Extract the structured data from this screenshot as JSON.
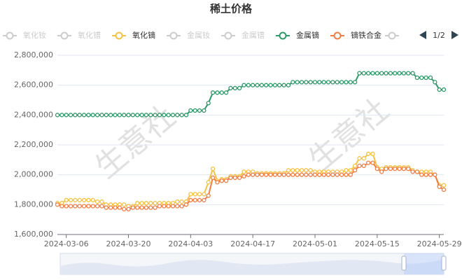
{
  "chart_data": {
    "type": "line",
    "title": "稀土价格",
    "categories": [
      null,
      null,
      "2024-03-06",
      null,
      null,
      null,
      null,
      null,
      null,
      null,
      null,
      null,
      null,
      null,
      null,
      null,
      "2024-03-20",
      null,
      null,
      null,
      null,
      null,
      null,
      null,
      null,
      null,
      null,
      null,
      null,
      null,
      "2024-04-03",
      null,
      null,
      null,
      null,
      null,
      null,
      null,
      null,
      null,
      null,
      null,
      null,
      null,
      "2024-04-17",
      null,
      null,
      null,
      null,
      null,
      null,
      null,
      null,
      null,
      null,
      null,
      null,
      null,
      "2024-05-01",
      null,
      null,
      null,
      null,
      null,
      null,
      null,
      null,
      null,
      null,
      null,
      null,
      null,
      "2024-05-15",
      null,
      null,
      null,
      null,
      null,
      null,
      null,
      null,
      null,
      null,
      null,
      null,
      null,
      "2024-05-29",
      null
    ],
    "series": [
      {
        "name": "氧化钕",
        "color": "#cccccc",
        "visible": false
      },
      {
        "name": "氧化镨",
        "color": "#cccccc",
        "visible": false
      },
      {
        "name": "氧化镝",
        "color": "#f5c242",
        "visible": true,
        "values": [
          1810000,
          1810000,
          1830000,
          1830000,
          1830000,
          1830000,
          1830000,
          1830000,
          1830000,
          1820000,
          1820000,
          1800000,
          1800000,
          1800000,
          1800000,
          1800000,
          1790000,
          1790000,
          1810000,
          1810000,
          1810000,
          1810000,
          1810000,
          1810000,
          1810000,
          1810000,
          1810000,
          1820000,
          1820000,
          1820000,
          1870000,
          1870000,
          1870000,
          1870000,
          1950000,
          2040000,
          1960000,
          1970000,
          1970000,
          1990000,
          1990000,
          1990000,
          2020000,
          2020000,
          2020000,
          2010000,
          2010000,
          2010000,
          2010000,
          2010000,
          2010000,
          2010000,
          2030000,
          2030000,
          2030000,
          2030000,
          2030000,
          2030000,
          2020000,
          2020000,
          2020000,
          2020000,
          2020000,
          2020000,
          2020000,
          2030000,
          2030000,
          2060000,
          2110000,
          2110000,
          2140000,
          2140000,
          2050000,
          2040000,
          2050000,
          2050000,
          2050000,
          2050000,
          2050000,
          2050000,
          2030000,
          2020000,
          2020000,
          2020000,
          2020000,
          2000000,
          1930000,
          1930000
        ]
      },
      {
        "name": "金属钕",
        "color": "#cccccc",
        "visible": false
      },
      {
        "name": "金属镨",
        "color": "#cccccc",
        "visible": false
      },
      {
        "name": "金属镝",
        "color": "#2e9a68",
        "visible": true,
        "values": [
          2400000,
          2400000,
          2400000,
          2400000,
          2400000,
          2400000,
          2400000,
          2400000,
          2400000,
          2400000,
          2400000,
          2400000,
          2400000,
          2400000,
          2400000,
          2400000,
          2400000,
          2400000,
          2400000,
          2400000,
          2400000,
          2400000,
          2400000,
          2400000,
          2400000,
          2400000,
          2400000,
          2400000,
          2400000,
          2400000,
          2430000,
          2430000,
          2430000,
          2430000,
          2480000,
          2550000,
          2550000,
          2550000,
          2550000,
          2580000,
          2580000,
          2580000,
          2600000,
          2600000,
          2600000,
          2600000,
          2600000,
          2600000,
          2600000,
          2600000,
          2600000,
          2600000,
          2600000,
          2620000,
          2620000,
          2620000,
          2620000,
          2620000,
          2620000,
          2620000,
          2620000,
          2620000,
          2620000,
          2620000,
          2620000,
          2620000,
          2620000,
          2620000,
          2680000,
          2680000,
          2680000,
          2680000,
          2680000,
          2680000,
          2680000,
          2680000,
          2680000,
          2680000,
          2680000,
          2680000,
          2680000,
          2650000,
          2650000,
          2650000,
          2650000,
          2620000,
          2570000,
          2570000
        ]
      },
      {
        "name": "镝铁合金",
        "color": "#f27d43",
        "visible": true,
        "values": [
          1800000,
          1790000,
          1790000,
          1790000,
          1790000,
          1790000,
          1790000,
          1790000,
          1790000,
          1790000,
          1790000,
          1780000,
          1780000,
          1780000,
          1780000,
          1770000,
          1770000,
          1780000,
          1780000,
          1780000,
          1780000,
          1780000,
          1780000,
          1790000,
          1790000,
          1790000,
          1790000,
          1790000,
          1790000,
          1800000,
          1830000,
          1830000,
          1830000,
          1830000,
          1860000,
          1980000,
          1950000,
          1960000,
          1960000,
          1980000,
          1980000,
          1980000,
          1990000,
          2000000,
          2000000,
          2000000,
          2000000,
          2000000,
          2000000,
          2000000,
          2000000,
          2000000,
          2000000,
          2000000,
          2000000,
          2000000,
          2000000,
          2000000,
          2000000,
          2000000,
          2000000,
          2000000,
          2000000,
          2000000,
          2000000,
          2000000,
          2000000,
          2030000,
          2060000,
          2060000,
          2080000,
          2080000,
          2040000,
          2020000,
          2040000,
          2040000,
          2040000,
          2040000,
          2040000,
          2040000,
          2020000,
          2020000,
          2000000,
          2000000,
          2000000,
          2000000,
          1920000,
          1900000
        ]
      }
    ],
    "ylim": [
      1600000,
      2800000
    ],
    "yticks": [
      {
        "value": 1600000,
        "label": "1,600,000"
      },
      {
        "value": 1800000,
        "label": "1,800,000"
      },
      {
        "value": 2000000,
        "label": "2,000,000"
      },
      {
        "value": 2200000,
        "label": "2,200,000"
      },
      {
        "value": 2400000,
        "label": "2,400,000"
      },
      {
        "value": 2600000,
        "label": "2,600,000"
      },
      {
        "value": 2800000,
        "label": "2,800,000"
      }
    ],
    "grid": true,
    "legend_page": "1/2",
    "watermark": "生意社"
  }
}
